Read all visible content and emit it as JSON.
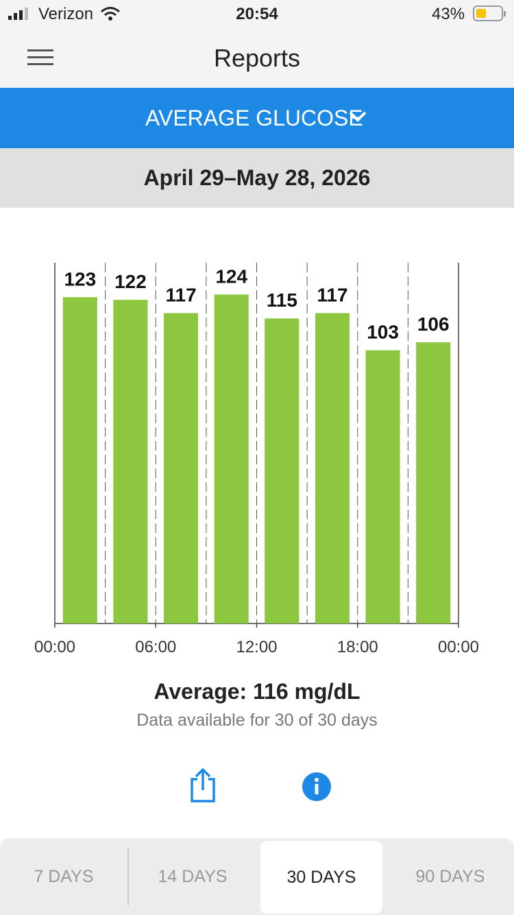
{
  "status_bar": {
    "carrier": "Verizon",
    "time": "20:54",
    "battery": "43%"
  },
  "header": {
    "title": "Reports"
  },
  "report_selector": {
    "label": "AVERAGE GLUCOSE"
  },
  "date_range": "April 29–May 28, 2026",
  "chart_data": {
    "type": "bar",
    "categories": [
      null,
      null,
      null,
      null,
      null,
      null,
      null,
      null
    ],
    "values": [
      123,
      122,
      117,
      124,
      115,
      117,
      103,
      106
    ],
    "color": "#8dc63f",
    "ylim": [
      0,
      136
    ],
    "xlim": [
      0,
      24
    ],
    "xticks": [
      {
        "value": 0,
        "label": "00:00"
      },
      {
        "value": 6,
        "label": "06:00"
      },
      {
        "value": 12,
        "label": "12:00"
      },
      {
        "value": 18,
        "label": "18:00"
      },
      {
        "value": 24,
        "label": "00:00"
      }
    ]
  },
  "summary": {
    "average": "Average: 116 mg/dL",
    "availability": "Data available for 30 of 30 days"
  },
  "tabs": [
    {
      "label": "7 DAYS"
    },
    {
      "label": "14 DAYS"
    },
    {
      "label": "30 DAYS",
      "selected": true
    },
    {
      "label": "90 DAYS"
    }
  ]
}
